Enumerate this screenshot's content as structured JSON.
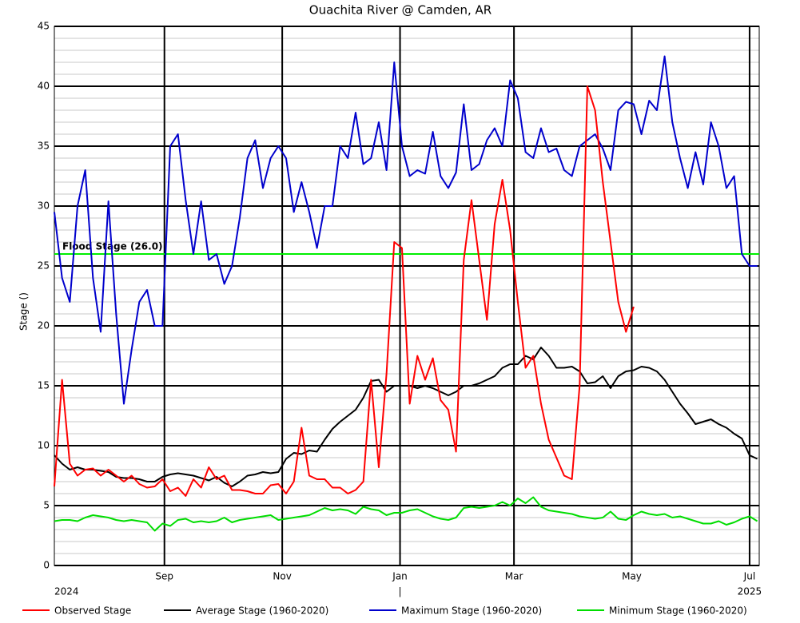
{
  "chart_data": {
    "type": "line",
    "title": "Ouachita River @ Camden, AR",
    "y_label": "Stage ()",
    "ylim": [
      0,
      45
    ],
    "yticks": [
      0,
      5,
      10,
      15,
      20,
      25,
      30,
      35,
      40,
      45
    ],
    "minor_yticks": [
      1,
      2,
      3,
      4,
      6,
      7,
      8,
      9,
      11,
      12,
      13,
      14,
      16,
      17,
      18,
      19,
      21,
      22,
      23,
      24,
      26,
      27,
      28,
      29,
      31,
      32,
      33,
      34,
      36,
      37,
      38,
      39,
      41,
      42,
      43,
      44
    ],
    "xlim": [
      0,
      365
    ],
    "xticks": [
      {
        "value": 57,
        "label": "Sep"
      },
      {
        "value": 118,
        "label": "Nov"
      },
      {
        "value": 179,
        "label": "Jan"
      },
      {
        "value": 238,
        "label": "Mar"
      },
      {
        "value": 299,
        "label": "May"
      },
      {
        "value": 360,
        "label": "Jul"
      }
    ],
    "x_secondary_ticks": [
      {
        "value": 0,
        "label": "2024"
      },
      {
        "value": 179,
        "label": "|"
      },
      {
        "value": 360,
        "label": "2025"
      }
    ],
    "grid": true,
    "legend": "bottom",
    "flood_stage": {
      "value": 26,
      "label": "Flood Stage (26.0)",
      "color": "#00ee00"
    },
    "x": [
      0,
      4,
      8,
      12,
      16,
      20,
      24,
      28,
      32,
      36,
      40,
      44,
      48,
      52,
      56,
      60,
      64,
      68,
      72,
      76,
      80,
      84,
      88,
      92,
      96,
      100,
      104,
      108,
      112,
      116,
      120,
      124,
      128,
      132,
      136,
      140,
      144,
      148,
      152,
      156,
      160,
      164,
      168,
      172,
      176,
      180,
      184,
      188,
      192,
      196,
      200,
      204,
      208,
      212,
      216,
      220,
      224,
      228,
      232,
      236,
      240,
      244,
      248,
      252,
      256,
      260,
      264,
      268,
      272,
      276,
      280,
      284,
      288,
      292,
      296,
      300,
      304,
      308,
      312,
      316,
      320,
      324,
      328,
      332,
      336,
      340,
      344,
      348,
      352,
      356,
      360,
      364
    ],
    "series": [
      {
        "name": "Observed Stage",
        "color": "#ff0000",
        "values": [
          6.6,
          15.5,
          8.5,
          7.5,
          8.0,
          8.1,
          7.5,
          8.0,
          7.5,
          7.0,
          7.5,
          6.8,
          6.5,
          6.6,
          7.2,
          6.2,
          6.5,
          5.8,
          7.2,
          6.5,
          8.2,
          7.2,
          7.5,
          6.3,
          6.3,
          6.2,
          6.0,
          6.0,
          6.7,
          6.8,
          6.0,
          7.0,
          11.5,
          7.5,
          7.2,
          7.2,
          6.5,
          6.5,
          6.0,
          6.3,
          7.0,
          15.5,
          8.2,
          16.0,
          27.0,
          26.5,
          13.5,
          17.5,
          15.5,
          17.3,
          13.8,
          13.0,
          9.5,
          25.5,
          30.5,
          25.5,
          20.5,
          28.5,
          32.2,
          28.0,
          22.0,
          16.5,
          17.5,
          13.5,
          10.5,
          9.0,
          7.5,
          7.2,
          15,
          40,
          38,
          32,
          27,
          22,
          19.5,
          21.6,
          null,
          null,
          null,
          null,
          null,
          null,
          null,
          null,
          null,
          null,
          null,
          null,
          null,
          null,
          null,
          null
        ]
      },
      {
        "name": "Average Stage (1960-2020)",
        "color": "#000000",
        "values": [
          9.2,
          8.5,
          8.0,
          8.2,
          8.0,
          8.0,
          7.9,
          7.8,
          7.4,
          7.3,
          7.3,
          7.2,
          7.0,
          7.0,
          7.4,
          7.6,
          7.7,
          7.6,
          7.5,
          7.3,
          7.1,
          7.4,
          6.9,
          6.6,
          7.0,
          7.5,
          7.6,
          7.8,
          7.7,
          7.8,
          8.9,
          9.4,
          9.3,
          9.6,
          9.5,
          10.5,
          11.4,
          12.0,
          12.5,
          13.0,
          14.0,
          15.4,
          15.5,
          14.5,
          15.0,
          15.0,
          15.0,
          14.8,
          15.0,
          14.8,
          14.5,
          14.2,
          14.5,
          15.0,
          15.0,
          15.2,
          15.5,
          15.8,
          16.5,
          16.8,
          16.8,
          17.5,
          17.2,
          18.2,
          17.5,
          16.5,
          16.5,
          16.6,
          16.2,
          15.2,
          15.3,
          15.8,
          14.8,
          15.8,
          16.2,
          16.3,
          16.6,
          16.5,
          16.2,
          15.5,
          14.5,
          13.5,
          12.7,
          11.8,
          12.0,
          12.2,
          11.8,
          11.5,
          11.0,
          10.6,
          9.2,
          8.9
        ]
      },
      {
        "name": "Maximum Stage (1960-2020)",
        "color": "#0000cc",
        "values": [
          29.5,
          24,
          22,
          30,
          33,
          24,
          19.5,
          30.4,
          21,
          13.5,
          18,
          22,
          23,
          20,
          20,
          35,
          36,
          30.5,
          26,
          30.4,
          25.5,
          26,
          23.5,
          25,
          29,
          34,
          35.5,
          31.5,
          34,
          35,
          34,
          29.5,
          32,
          29.5,
          26.5,
          30,
          30,
          35,
          34,
          37.8,
          33.5,
          34,
          37,
          33,
          42,
          35,
          32.5,
          33,
          32.7,
          36.2,
          32.5,
          31.5,
          32.8,
          38.5,
          33,
          33.5,
          35.5,
          36.5,
          35,
          40.5,
          39,
          34.5,
          34,
          36.5,
          34.5,
          34.8,
          33,
          32.5,
          35,
          35.5,
          36,
          34.8,
          33,
          38,
          38.7,
          38.5,
          36,
          38.8,
          38,
          42.5,
          37,
          34,
          31.5,
          34.5,
          31.8,
          37,
          35,
          31.5,
          32.5,
          26,
          25,
          25
        ]
      },
      {
        "name": "Minimum Stage (1960-2020)",
        "color": "#00dd00",
        "values": [
          3.7,
          3.8,
          3.8,
          3.7,
          4.0,
          4.2,
          4.1,
          4.0,
          3.8,
          3.7,
          3.8,
          3.7,
          3.6,
          2.9,
          3.5,
          3.3,
          3.8,
          3.9,
          3.6,
          3.7,
          3.6,
          3.7,
          4.0,
          3.6,
          3.8,
          3.9,
          4.0,
          4.1,
          4.2,
          3.8,
          3.9,
          4.0,
          4.1,
          4.2,
          4.5,
          4.8,
          4.6,
          4.7,
          4.6,
          4.3,
          4.9,
          4.7,
          4.6,
          4.2,
          4.4,
          4.4,
          4.6,
          4.7,
          4.4,
          4.1,
          3.9,
          3.8,
          4.0,
          4.8,
          4.9,
          4.8,
          4.9,
          5.0,
          5.3,
          5.0,
          5.6,
          5.2,
          5.7,
          4.9,
          4.6,
          4.5,
          4.4,
          4.3,
          4.1,
          4.0,
          3.9,
          4.0,
          4.5,
          3.9,
          3.8,
          4.2,
          4.5,
          4.3,
          4.2,
          4.3,
          4.0,
          4.1,
          3.9,
          3.7,
          3.5,
          3.5,
          3.7,
          3.4,
          3.6,
          3.9,
          4.1,
          3.7
        ]
      }
    ]
  }
}
